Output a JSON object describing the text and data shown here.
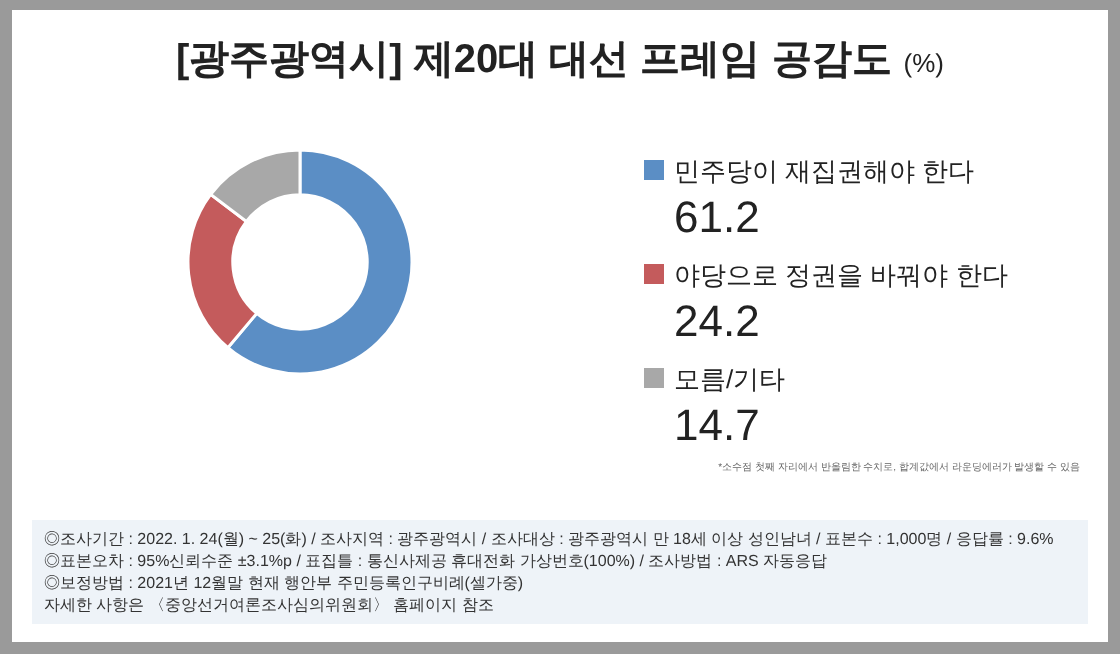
{
  "chart_data": {
    "type": "donut",
    "title": "[광주광역시] 제20대 대선 프레임 공감도",
    "subtitle": "(%)",
    "categories": [
      "민주당이 재집권해야 한다",
      "야당으로 정권을 바꿔야 한다",
      "모름/기타"
    ],
    "values": [
      61.2,
      24.2,
      14.7
    ],
    "colors": [
      "#5b8ec5",
      "#c45b5c",
      "#a8a8a8"
    ],
    "data_labels": true,
    "legend": "right",
    "annotations": [
      "*소수점 첫째 자리에서 반올림한 수치로, 합계값에서 라운딩에러가 발생할 수 있음",
      "◎조사기간 : 2022. 1. 24(월) ~ 25(화) / 조사지역 : 광주광역시 / 조사대상 : 광주광역시 만 18세 이상 성인남녀 / 표본수 : 1,000명 / 응답률 : 9.6%",
      "◎표본오차 : 95%신뢰수준 ±3.1%p / 표집틀 : 통신사제공 휴대전화 가상번호(100%) / 조사방법 : ARS 자동응답",
      "◎보정방법 : 2021년 12월말 현재 행안부 주민등록인구비례(셀가중)",
      "자세한 사항은 〈중앙선거여론조사심의위원회〉 홈페이지 참조"
    ]
  }
}
